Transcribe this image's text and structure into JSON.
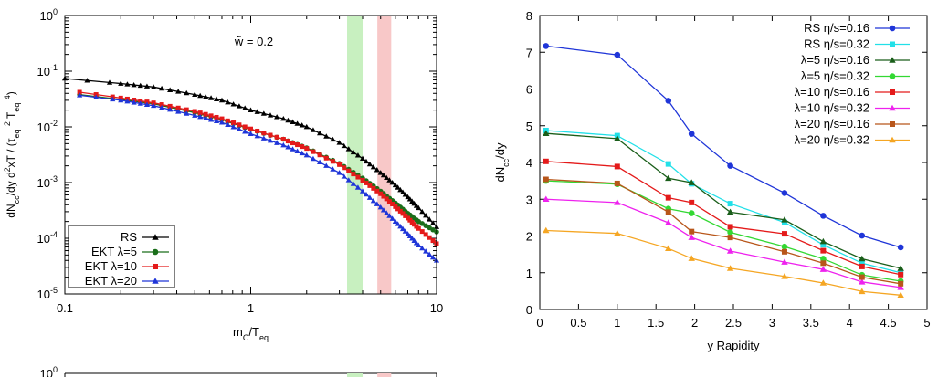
{
  "chart_data": [
    {
      "type": "line",
      "xscale": "log",
      "yscale": "log",
      "xlim": [
        0.1,
        10
      ],
      "ylim": [
        1e-05,
        1
      ],
      "xlabel": "m_C/T_eq",
      "ylabel": "dN_cc/dy d²xT / (τ_eq² T_eq⁴)",
      "x_ticks": [
        "0.1",
        "1",
        "10"
      ],
      "y_ticks": [
        {
          "base": "10",
          "exp": "0"
        },
        {
          "base": "10",
          "exp": "-1"
        },
        {
          "base": "10",
          "exp": "-2"
        },
        {
          "base": "10",
          "exp": "-3"
        },
        {
          "base": "10",
          "exp": "-4"
        },
        {
          "base": "10",
          "exp": "-5"
        }
      ],
      "annotation": "w̃ = 0.2",
      "bands": [
        {
          "x": [
            3.3,
            4.0
          ],
          "color": "#c8f0c0"
        },
        {
          "x": [
            4.8,
            5.7
          ],
          "color": "#f8c8c8"
        }
      ],
      "legend_position": "bottom-left",
      "series": [
        {
          "name": "RS",
          "color": "#000000",
          "marker": "triangle",
          "x": [
            0.1,
            0.2,
            0.3,
            0.5,
            0.7,
            1.0,
            1.5,
            2.0,
            3.0,
            4.0,
            5.0,
            6.0,
            7.0,
            8.0,
            10.0
          ],
          "y": [
            0.074,
            0.06,
            0.052,
            0.038,
            0.03,
            0.02,
            0.014,
            0.01,
            0.0052,
            0.0027,
            0.0015,
            0.0009,
            0.00055,
            0.00035,
            0.00016
          ]
        },
        {
          "name": "EKT λ=5",
          "color": "#1a6e1a",
          "marker": "circle",
          "x": [
            0.12,
            0.2,
            0.3,
            0.5,
            0.7,
            1.0,
            1.5,
            2.0,
            3.0,
            4.0,
            5.0,
            6.0,
            7.0,
            8.0,
            10.0
          ],
          "y": [
            0.038,
            0.031,
            0.026,
            0.018,
            0.0135,
            0.009,
            0.006,
            0.0042,
            0.0022,
            0.0012,
            0.0007,
            0.00043,
            0.00028,
            0.0002,
            0.00013
          ]
        },
        {
          "name": "EKT λ=10",
          "color": "#e41a1a",
          "marker": "square",
          "x": [
            0.12,
            0.2,
            0.3,
            0.5,
            0.7,
            1.0,
            1.5,
            2.0,
            3.0,
            4.0,
            5.0,
            6.0,
            7.0,
            8.0,
            10.0
          ],
          "y": [
            0.042,
            0.033,
            0.027,
            0.019,
            0.014,
            0.0092,
            0.006,
            0.0041,
            0.0021,
            0.0011,
            0.00063,
            0.00037,
            0.00023,
            0.00015,
            8e-05
          ]
        },
        {
          "name": "EKT λ=20",
          "color": "#1f35d8",
          "marker": "triangle",
          "x": [
            0.12,
            0.2,
            0.3,
            0.5,
            0.7,
            1.0,
            1.5,
            2.0,
            3.0,
            4.0,
            5.0,
            6.0,
            7.0,
            8.0,
            10.0
          ],
          "y": [
            0.037,
            0.03,
            0.024,
            0.016,
            0.012,
            0.0075,
            0.0047,
            0.0031,
            0.0015,
            0.0007,
            0.00036,
            0.0002,
            0.00012,
            7.5e-05,
            4e-05
          ]
        }
      ]
    },
    {
      "type": "line",
      "xlim": [
        0,
        5
      ],
      "ylim": [
        0,
        8
      ],
      "xlabel": "y Rapidity",
      "ylabel": "dN_cc/dy",
      "x_ticks": [
        "0",
        "0.5",
        "1",
        "1.5",
        "2",
        "2.5",
        "3",
        "3.5",
        "4",
        "4.5",
        "5"
      ],
      "y_ticks": [
        "0",
        "1",
        "2",
        "3",
        "4",
        "5",
        "6",
        "7",
        "8"
      ],
      "legend_position": "top-right",
      "x": [
        0.08,
        1.0,
        1.66,
        1.96,
        2.46,
        3.16,
        3.66,
        4.16,
        4.66
      ],
      "series": [
        {
          "name": "RS η/s=0.16",
          "color": "#1f35d8",
          "marker": "circle",
          "values": [
            7.17,
            6.93,
            5.68,
            4.78,
            3.91,
            3.17,
            2.55,
            2.01,
            1.69
          ]
        },
        {
          "name": "RS η/s=0.32",
          "color": "#22e0e8",
          "marker": "square",
          "values": [
            4.87,
            4.73,
            3.96,
            3.42,
            2.88,
            2.37,
            1.76,
            1.26,
            1.0
          ]
        },
        {
          "name": "λ=5 η/s=0.16",
          "color": "#1a5e1a",
          "marker": "triangle",
          "values": [
            4.79,
            4.65,
            3.57,
            3.45,
            2.65,
            2.44,
            1.85,
            1.38,
            1.12
          ]
        },
        {
          "name": "λ=5 η/s=0.32",
          "color": "#33d833",
          "marker": "circle",
          "values": [
            3.5,
            3.41,
            2.74,
            2.62,
            2.1,
            1.71,
            1.38,
            0.94,
            0.77
          ]
        },
        {
          "name": "λ=10 η/s=0.16",
          "color": "#e41a1a",
          "marker": "square",
          "values": [
            4.03,
            3.89,
            3.04,
            2.91,
            2.25,
            2.06,
            1.6,
            1.17,
            0.95
          ]
        },
        {
          "name": "λ=10 η/s=0.32",
          "color": "#ee22ee",
          "marker": "triangle",
          "values": [
            3.0,
            2.91,
            2.36,
            1.96,
            1.59,
            1.29,
            1.09,
            0.75,
            0.6
          ]
        },
        {
          "name": "λ=20 η/s=0.16",
          "color": "#b8561a",
          "marker": "square",
          "values": [
            3.54,
            3.43,
            2.65,
            2.12,
            1.96,
            1.57,
            1.26,
            0.88,
            0.7
          ]
        },
        {
          "name": "λ=20 η/s=0.32",
          "color": "#f5a623",
          "marker": "triangle",
          "values": [
            2.15,
            2.07,
            1.66,
            1.39,
            1.12,
            0.9,
            0.72,
            0.49,
            0.39
          ]
        }
      ]
    },
    {
      "type": "line",
      "xscale": "log",
      "yscale": "log",
      "partial": true,
      "y_ticks": [
        {
          "base": "10",
          "exp": "0"
        }
      ]
    }
  ]
}
